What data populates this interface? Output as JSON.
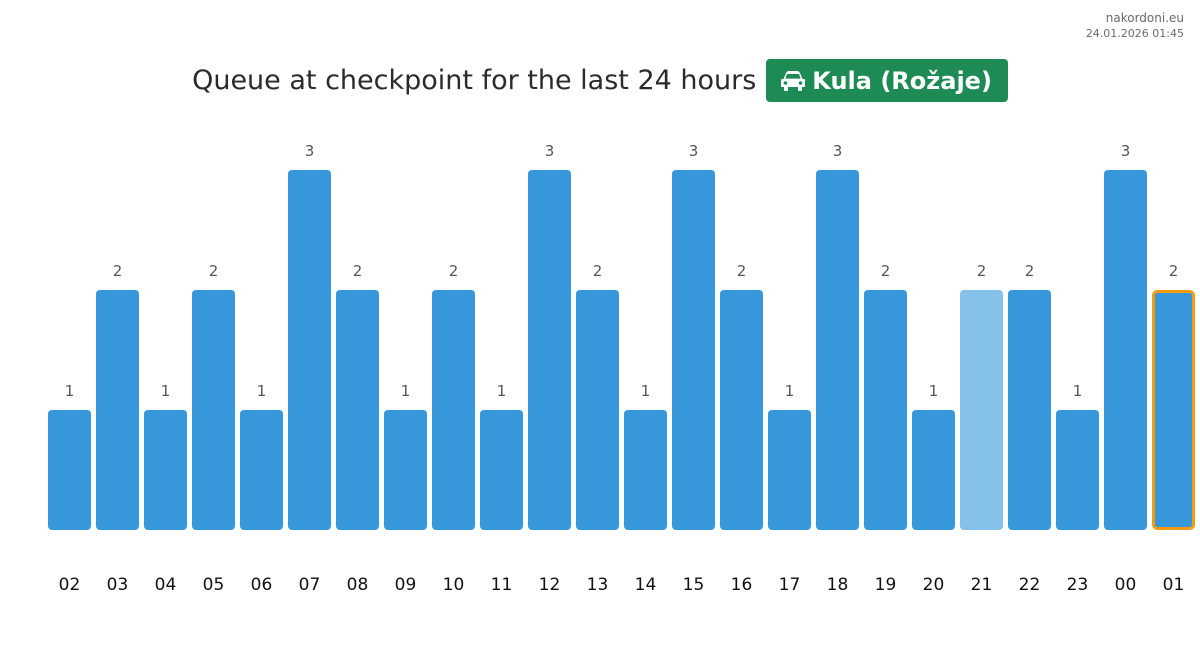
{
  "header": {
    "site": "nakordoni.eu",
    "timestamp": "24.01.2026 01:45",
    "title": "Queue at checkpoint for the last 24 hours",
    "checkpoint_label": "Kula (Rožaje)",
    "checkpoint_icon": "car-icon"
  },
  "colors": {
    "bar": "#3698db",
    "bar_light": "#85c1e9",
    "current_outline": "#f39c12",
    "badge": "#1e8b54",
    "value_label": "#555555",
    "tick_label": "#111111"
  },
  "chart_data": {
    "type": "bar",
    "title": "Queue at checkpoint for the last 24 hours",
    "xlabel": "",
    "ylabel": "",
    "categories": [
      "02",
      "03",
      "04",
      "05",
      "06",
      "07",
      "08",
      "09",
      "10",
      "11",
      "12",
      "13",
      "14",
      "15",
      "16",
      "17",
      "18",
      "19",
      "20",
      "21",
      "22",
      "23",
      "00",
      "01"
    ],
    "values": [
      1,
      2,
      1,
      2,
      1,
      3,
      2,
      1,
      2,
      1,
      3,
      2,
      1,
      3,
      2,
      1,
      3,
      2,
      1,
      2,
      2,
      1,
      3,
      2
    ],
    "ylim": [
      0,
      3
    ],
    "grid": false,
    "legend": "none",
    "light_bar_category": "21",
    "highlighted_category": "01",
    "data_labels": true
  }
}
